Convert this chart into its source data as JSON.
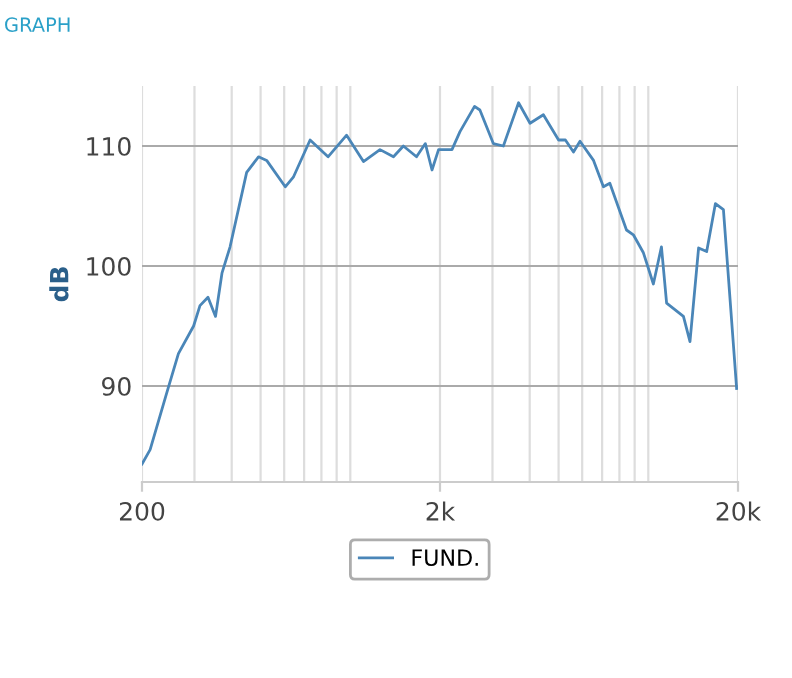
{
  "chart_data": {
    "type": "line",
    "title": "GRAPH",
    "ylabel": "dB",
    "log": "x",
    "x": [
      200,
      213,
      242,
      265,
      298,
      313,
      333,
      353,
      371,
      395,
      449,
      492,
      524,
      605,
      644,
      733,
      842,
      972,
      1107,
      1258,
      1396,
      1507,
      1668,
      1786,
      1880,
      1978,
      2194,
      2334,
      2612,
      2722,
      3020,
      3264,
      3670,
      4010,
      4446,
      5000,
      5270,
      5610,
      5900,
      6550,
      7070,
      7430,
      8450,
      8910,
      9630,
      10400,
      11070,
      11520,
      13120,
      13800,
      14750,
      15700,
      16800,
      17870,
      19790
    ],
    "series": [
      {
        "name": "FUND.",
        "color": "#4a86b8",
        "values": [
          83.5,
          84.7,
          89.4,
          92.7,
          95,
          96.7,
          97.4,
          95.8,
          99.4,
          101.6,
          107.8,
          109.1,
          108.8,
          106.6,
          107.4,
          110.5,
          109.1,
          110.9,
          108.7,
          109.7,
          109.1,
          110,
          109.1,
          110.2,
          108,
          109.7,
          109.7,
          111.2,
          113.3,
          113,
          110.2,
          110,
          113.6,
          111.9,
          112.6,
          110.5,
          110.5,
          109.5,
          110.4,
          108.8,
          106.6,
          106.9,
          103,
          102.6,
          101.1,
          98.5,
          101.6,
          96.9,
          95.8,
          93.7,
          101.5,
          101.2,
          105.2,
          104.7,
          89.8
        ]
      }
    ],
    "xlim": [
      200,
      20000
    ],
    "ylim": [
      82,
      115
    ],
    "xticks": [
      {
        "value": 200,
        "label": "200"
      },
      {
        "value": 300,
        "label": null
      },
      {
        "value": 400,
        "label": null
      },
      {
        "value": 500,
        "label": null
      },
      {
        "value": 600,
        "label": null
      },
      {
        "value": 700,
        "label": null
      },
      {
        "value": 800,
        "label": null
      },
      {
        "value": 900,
        "label": null
      },
      {
        "value": 1000,
        "label": null
      },
      {
        "value": 2000,
        "label": "2k"
      },
      {
        "value": 3000,
        "label": null
      },
      {
        "value": 4000,
        "label": null
      },
      {
        "value": 5000,
        "label": null
      },
      {
        "value": 6000,
        "label": null
      },
      {
        "value": 7000,
        "label": null
      },
      {
        "value": 8000,
        "label": null
      },
      {
        "value": 9000,
        "label": null
      },
      {
        "value": 10000,
        "label": null
      },
      {
        "value": 20000,
        "label": "20k"
      }
    ],
    "yticks": [
      90,
      100,
      110
    ],
    "grid": true,
    "legend": "bottom",
    "marker": "none",
    "line_style": "solid"
  }
}
